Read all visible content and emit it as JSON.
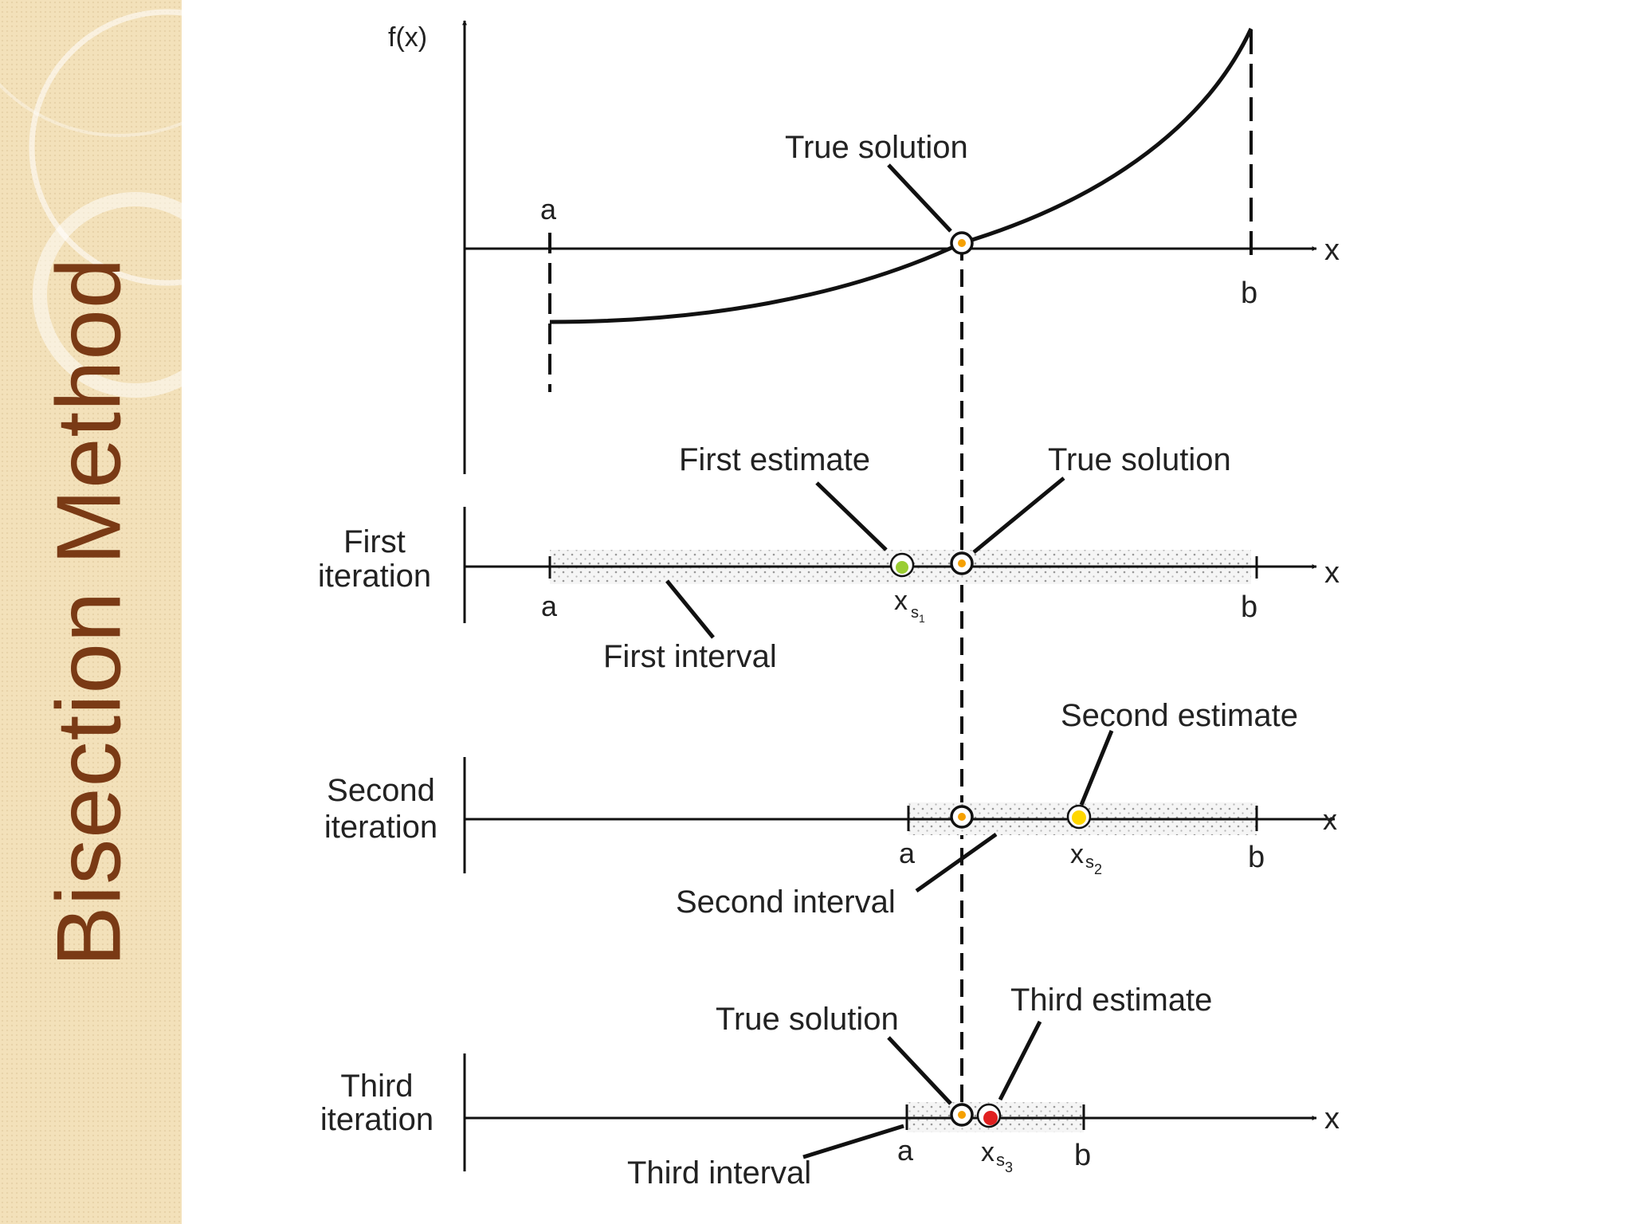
{
  "slide": {
    "title": "Bisection Method"
  },
  "colors": {
    "sidebar_bg": "#f3e1ba",
    "title_text": "#7a3a15",
    "point_orange": "#f5a000",
    "estimate_green": "#9acd32",
    "estimate_yellow": "#ffd700",
    "estimate_red": "#e02020"
  },
  "graph": {
    "y_axis_label": "f(x)",
    "x_axis_label": "x",
    "a_label": "a",
    "b_label": "b",
    "true_solution_label": "True solution"
  },
  "first_iteration": {
    "row_label_line1": "First",
    "row_label_line2": "iteration",
    "estimate_label": "First estimate",
    "true_solution_label": "True solution",
    "interval_label": "First interval",
    "a_label": "a",
    "b_label": "b",
    "x_label": "x",
    "estimate_symbol": "x",
    "estimate_subscript": "s",
    "estimate_index": "1"
  },
  "second_iteration": {
    "row_label_line1": "Second",
    "row_label_line2": "iteration",
    "estimate_label": "Second estimate",
    "interval_label": "Second interval",
    "a_label": "a",
    "b_label": "b",
    "x_label": "x",
    "estimate_symbol": "x",
    "estimate_subscript": "s",
    "estimate_index": "2"
  },
  "third_iteration": {
    "row_label_line1": "Third",
    "row_label_line2": "iteration",
    "true_solution_label": "True solution",
    "estimate_label": "Third estimate",
    "interval_label": "Third interval",
    "a_label": "a",
    "b_label": "b",
    "x_label": "x",
    "estimate_symbol": "x",
    "estimate_subscript": "s",
    "estimate_index": "3"
  }
}
